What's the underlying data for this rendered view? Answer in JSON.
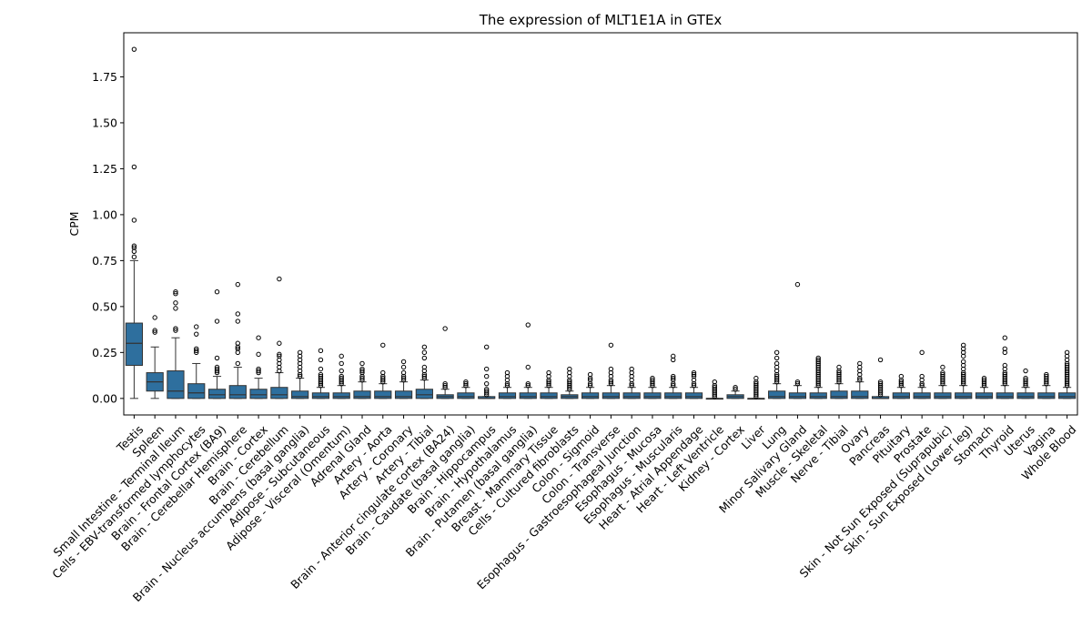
{
  "chart_data": {
    "type": "boxplot",
    "title": "The expression of MLT1E1A in GTEx",
    "xlabel": "",
    "ylabel": "CPM",
    "ylim": [
      -0.09,
      1.99
    ],
    "yticks": [
      "0.00",
      "0.25",
      "0.50",
      "0.75",
      "1.00",
      "1.25",
      "1.50",
      "1.75"
    ],
    "colors": {
      "box": "#2e6f9e",
      "line": "#333333",
      "flier": "#000000"
    },
    "categories": [
      {
        "name": "Testis",
        "q1": 0.18,
        "med": 0.3,
        "q3": 0.41,
        "lo": 0.0,
        "hi": 0.75,
        "out": [
          0.77,
          0.8,
          0.82,
          0.83,
          0.97,
          1.26,
          1.9
        ]
      },
      {
        "name": "Spleen",
        "q1": 0.04,
        "med": 0.09,
        "q3": 0.14,
        "lo": 0.0,
        "hi": 0.28,
        "out": [
          0.36,
          0.37,
          0.44
        ]
      },
      {
        "name": "Small Intestine - Terminal Ileum",
        "q1": 0.0,
        "med": 0.04,
        "q3": 0.15,
        "lo": 0.0,
        "hi": 0.33,
        "out": [
          0.37,
          0.38,
          0.49,
          0.52,
          0.57,
          0.58
        ]
      },
      {
        "name": "Cells - EBV-transformed lymphocytes",
        "q1": 0.0,
        "med": 0.03,
        "q3": 0.08,
        "lo": 0.0,
        "hi": 0.19,
        "out": [
          0.25,
          0.26,
          0.27,
          0.35,
          0.39
        ]
      },
      {
        "name": "Brain - Frontal Cortex (BA9)",
        "q1": 0.0,
        "med": 0.02,
        "q3": 0.05,
        "lo": 0.0,
        "hi": 0.12,
        "out": [
          0.14,
          0.15,
          0.16,
          0.17,
          0.22,
          0.42,
          0.58
        ]
      },
      {
        "name": "Brain - Cerebellar Hemisphere",
        "q1": 0.0,
        "med": 0.02,
        "q3": 0.07,
        "lo": 0.0,
        "hi": 0.17,
        "out": [
          0.19,
          0.25,
          0.27,
          0.28,
          0.3,
          0.42,
          0.46,
          0.62
        ]
      },
      {
        "name": "Brain - Cortex",
        "q1": 0.0,
        "med": 0.02,
        "q3": 0.05,
        "lo": 0.0,
        "hi": 0.11,
        "out": [
          0.14,
          0.15,
          0.16,
          0.24,
          0.33
        ]
      },
      {
        "name": "Brain - Cerebellum",
        "q1": 0.0,
        "med": 0.02,
        "q3": 0.06,
        "lo": 0.0,
        "hi": 0.14,
        "out": [
          0.15,
          0.17,
          0.19,
          0.21,
          0.23,
          0.24,
          0.3,
          0.65
        ]
      },
      {
        "name": "Brain - Nucleus accumbens (basal ganglia)",
        "q1": 0.0,
        "med": 0.01,
        "q3": 0.04,
        "lo": 0.0,
        "hi": 0.11,
        "out": [
          0.12,
          0.13,
          0.15,
          0.17,
          0.19,
          0.21,
          0.23,
          0.25
        ]
      },
      {
        "name": "Adipose - Subcutaneous",
        "q1": 0.0,
        "med": 0.01,
        "q3": 0.03,
        "lo": 0.0,
        "hi": 0.06,
        "out": [
          0.07,
          0.08,
          0.09,
          0.1,
          0.11,
          0.12,
          0.13,
          0.16,
          0.21,
          0.26
        ]
      },
      {
        "name": "Adipose - Visceral (Omentum)",
        "q1": 0.0,
        "med": 0.01,
        "q3": 0.03,
        "lo": 0.0,
        "hi": 0.07,
        "out": [
          0.08,
          0.09,
          0.1,
          0.11,
          0.12,
          0.15,
          0.19,
          0.23
        ]
      },
      {
        "name": "Adrenal Gland",
        "q1": 0.0,
        "med": 0.01,
        "q3": 0.04,
        "lo": 0.0,
        "hi": 0.09,
        "out": [
          0.1,
          0.11,
          0.12,
          0.14,
          0.15,
          0.16,
          0.19
        ]
      },
      {
        "name": "Artery - Aorta",
        "q1": 0.0,
        "med": 0.01,
        "q3": 0.04,
        "lo": 0.0,
        "hi": 0.08,
        "out": [
          0.09,
          0.1,
          0.11,
          0.12,
          0.14,
          0.29
        ]
      },
      {
        "name": "Artery - Coronary",
        "q1": 0.0,
        "med": 0.01,
        "q3": 0.04,
        "lo": 0.0,
        "hi": 0.09,
        "out": [
          0.1,
          0.11,
          0.12,
          0.14,
          0.17,
          0.2
        ]
      },
      {
        "name": "Artery - Tibial",
        "q1": 0.0,
        "med": 0.02,
        "q3": 0.05,
        "lo": 0.0,
        "hi": 0.1,
        "out": [
          0.11,
          0.12,
          0.13,
          0.15,
          0.17,
          0.22,
          0.25,
          0.28
        ]
      },
      {
        "name": "Brain - Anterior cingulate cortex (BA24)",
        "q1": 0.0,
        "med": 0.01,
        "q3": 0.02,
        "lo": 0.0,
        "hi": 0.05,
        "out": [
          0.06,
          0.07,
          0.08,
          0.38
        ]
      },
      {
        "name": "Brain - Caudate (basal ganglia)",
        "q1": 0.0,
        "med": 0.01,
        "q3": 0.03,
        "lo": 0.0,
        "hi": 0.06,
        "out": [
          0.07,
          0.08,
          0.09
        ]
      },
      {
        "name": "Brain - Hippocampus",
        "q1": 0.0,
        "med": 0.0,
        "q3": 0.01,
        "lo": 0.0,
        "hi": 0.01,
        "out": [
          0.02,
          0.03,
          0.04,
          0.05,
          0.08,
          0.12,
          0.16,
          0.28
        ]
      },
      {
        "name": "Brain - Hypothalamus",
        "q1": 0.0,
        "med": 0.01,
        "q3": 0.03,
        "lo": 0.0,
        "hi": 0.06,
        "out": [
          0.07,
          0.08,
          0.1,
          0.12,
          0.14
        ]
      },
      {
        "name": "Brain - Putamen (basal ganglia)",
        "q1": 0.0,
        "med": 0.01,
        "q3": 0.03,
        "lo": 0.0,
        "hi": 0.06,
        "out": [
          0.07,
          0.08,
          0.17,
          0.4
        ]
      },
      {
        "name": "Breast - Mammary Tissue",
        "q1": 0.0,
        "med": 0.01,
        "q3": 0.03,
        "lo": 0.0,
        "hi": 0.06,
        "out": [
          0.07,
          0.08,
          0.09,
          0.1,
          0.12,
          0.14
        ]
      },
      {
        "name": "Cells - Cultured fibroblasts",
        "q1": 0.0,
        "med": 0.01,
        "q3": 0.02,
        "lo": 0.0,
        "hi": 0.04,
        "out": [
          0.05,
          0.06,
          0.07,
          0.08,
          0.09,
          0.1,
          0.12,
          0.14,
          0.16
        ]
      },
      {
        "name": "Colon - Sigmoid",
        "q1": 0.0,
        "med": 0.01,
        "q3": 0.03,
        "lo": 0.0,
        "hi": 0.06,
        "out": [
          0.07,
          0.08,
          0.1,
          0.11,
          0.13
        ]
      },
      {
        "name": "Colon - Transverse",
        "q1": 0.0,
        "med": 0.01,
        "q3": 0.03,
        "lo": 0.0,
        "hi": 0.07,
        "out": [
          0.08,
          0.09,
          0.1,
          0.12,
          0.14,
          0.16,
          0.29
        ]
      },
      {
        "name": "Esophagus - Gastroesophageal Junction",
        "q1": 0.0,
        "med": 0.01,
        "q3": 0.03,
        "lo": 0.0,
        "hi": 0.06,
        "out": [
          0.07,
          0.08,
          0.1,
          0.12,
          0.14,
          0.16
        ]
      },
      {
        "name": "Esophagus - Mucosa",
        "q1": 0.0,
        "med": 0.01,
        "q3": 0.03,
        "lo": 0.0,
        "hi": 0.06,
        "out": [
          0.07,
          0.08,
          0.09,
          0.1,
          0.11
        ]
      },
      {
        "name": "Esophagus - Muscularis",
        "q1": 0.0,
        "med": 0.01,
        "q3": 0.03,
        "lo": 0.0,
        "hi": 0.06,
        "out": [
          0.07,
          0.08,
          0.1,
          0.11,
          0.12,
          0.21,
          0.23
        ]
      },
      {
        "name": "Heart - Atrial Appendage",
        "q1": 0.0,
        "med": 0.01,
        "q3": 0.03,
        "lo": 0.0,
        "hi": 0.06,
        "out": [
          0.07,
          0.08,
          0.1,
          0.12,
          0.13,
          0.14
        ]
      },
      {
        "name": "Heart - Left Ventricle",
        "q1": 0.0,
        "med": 0.0,
        "q3": 0.0,
        "lo": 0.0,
        "hi": 0.0,
        "out": [
          0.01,
          0.02,
          0.03,
          0.04,
          0.05,
          0.06,
          0.07,
          0.09
        ]
      },
      {
        "name": "Kidney - Cortex",
        "q1": 0.0,
        "med": 0.01,
        "q3": 0.02,
        "lo": 0.0,
        "hi": 0.04,
        "out": [
          0.05,
          0.06
        ]
      },
      {
        "name": "Liver",
        "q1": 0.0,
        "med": 0.0,
        "q3": 0.0,
        "lo": 0.0,
        "hi": 0.0,
        "out": [
          0.01,
          0.02,
          0.03,
          0.04,
          0.05,
          0.06,
          0.07,
          0.08,
          0.09,
          0.11
        ]
      },
      {
        "name": "Lung",
        "q1": 0.0,
        "med": 0.01,
        "q3": 0.04,
        "lo": 0.0,
        "hi": 0.08,
        "out": [
          0.09,
          0.1,
          0.11,
          0.12,
          0.13,
          0.15,
          0.17,
          0.19,
          0.22,
          0.25
        ]
      },
      {
        "name": "Minor Salivary Gland",
        "q1": 0.0,
        "med": 0.01,
        "q3": 0.03,
        "lo": 0.0,
        "hi": 0.07,
        "out": [
          0.08,
          0.09,
          0.62
        ]
      },
      {
        "name": "Muscle - Skeletal",
        "q1": 0.0,
        "med": 0.01,
        "q3": 0.03,
        "lo": 0.0,
        "hi": 0.06,
        "out": [
          0.07,
          0.08,
          0.09,
          0.1,
          0.11,
          0.12,
          0.13,
          0.14,
          0.15,
          0.16,
          0.17,
          0.18,
          0.19,
          0.2,
          0.21,
          0.22
        ]
      },
      {
        "name": "Nerve - Tibial",
        "q1": 0.0,
        "med": 0.01,
        "q3": 0.04,
        "lo": 0.0,
        "hi": 0.08,
        "out": [
          0.09,
          0.1,
          0.11,
          0.12,
          0.13,
          0.14,
          0.15,
          0.17
        ]
      },
      {
        "name": "Ovary",
        "q1": 0.0,
        "med": 0.01,
        "q3": 0.04,
        "lo": 0.0,
        "hi": 0.09,
        "out": [
          0.1,
          0.11,
          0.13,
          0.15,
          0.17,
          0.19
        ]
      },
      {
        "name": "Pancreas",
        "q1": 0.0,
        "med": 0.0,
        "q3": 0.01,
        "lo": 0.0,
        "hi": 0.01,
        "out": [
          0.02,
          0.03,
          0.04,
          0.05,
          0.06,
          0.07,
          0.08,
          0.09,
          0.21
        ]
      },
      {
        "name": "Pituitary",
        "q1": 0.0,
        "med": 0.01,
        "q3": 0.03,
        "lo": 0.0,
        "hi": 0.06,
        "out": [
          0.07,
          0.08,
          0.09,
          0.1,
          0.12
        ]
      },
      {
        "name": "Prostate",
        "q1": 0.0,
        "med": 0.01,
        "q3": 0.03,
        "lo": 0.0,
        "hi": 0.06,
        "out": [
          0.07,
          0.08,
          0.1,
          0.12,
          0.25
        ]
      },
      {
        "name": "Skin - Not Sun Exposed (Suprapubic)",
        "q1": 0.0,
        "med": 0.01,
        "q3": 0.03,
        "lo": 0.0,
        "hi": 0.07,
        "out": [
          0.08,
          0.09,
          0.1,
          0.11,
          0.12,
          0.13,
          0.14,
          0.17
        ]
      },
      {
        "name": "Skin - Sun Exposed (Lower leg)",
        "q1": 0.0,
        "med": 0.01,
        "q3": 0.03,
        "lo": 0.0,
        "hi": 0.07,
        "out": [
          0.08,
          0.09,
          0.1,
          0.11,
          0.12,
          0.13,
          0.14,
          0.16,
          0.18,
          0.2,
          0.23,
          0.25,
          0.27,
          0.29
        ]
      },
      {
        "name": "Stomach",
        "q1": 0.0,
        "med": 0.01,
        "q3": 0.03,
        "lo": 0.0,
        "hi": 0.06,
        "out": [
          0.07,
          0.08,
          0.09,
          0.1,
          0.11
        ]
      },
      {
        "name": "Thyroid",
        "q1": 0.0,
        "med": 0.01,
        "q3": 0.03,
        "lo": 0.0,
        "hi": 0.07,
        "out": [
          0.08,
          0.09,
          0.1,
          0.11,
          0.12,
          0.13,
          0.14,
          0.16,
          0.18,
          0.25,
          0.27,
          0.33
        ]
      },
      {
        "name": "Uterus",
        "q1": 0.0,
        "med": 0.01,
        "q3": 0.03,
        "lo": 0.0,
        "hi": 0.06,
        "out": [
          0.07,
          0.08,
          0.09,
          0.1,
          0.11,
          0.15
        ]
      },
      {
        "name": "Vagina",
        "q1": 0.0,
        "med": 0.01,
        "q3": 0.03,
        "lo": 0.0,
        "hi": 0.07,
        "out": [
          0.08,
          0.09,
          0.1,
          0.11,
          0.12,
          0.13
        ]
      },
      {
        "name": "Whole Blood",
        "q1": 0.0,
        "med": 0.01,
        "q3": 0.03,
        "lo": 0.0,
        "hi": 0.06,
        "out": [
          0.07,
          0.08,
          0.09,
          0.1,
          0.11,
          0.12,
          0.13,
          0.14,
          0.15,
          0.16,
          0.17,
          0.18,
          0.19,
          0.21,
          0.23,
          0.25
        ]
      }
    ]
  }
}
